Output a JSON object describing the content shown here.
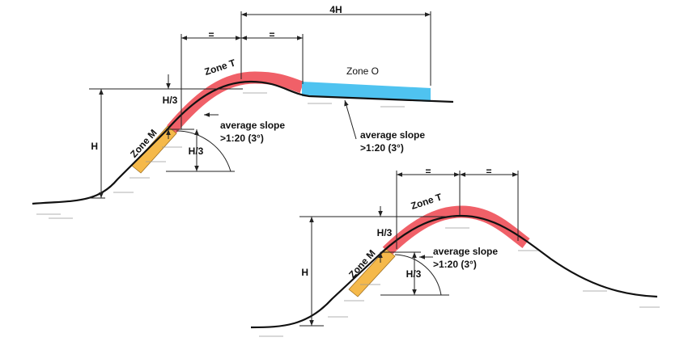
{
  "diagrams": [
    {
      "dimension_top": "4H",
      "equal_left": "=",
      "equal_right": "=",
      "zone_t": "Zone T",
      "zone_o": "Zone O",
      "h_third_upper": "H/3",
      "height": "H",
      "zone_m": "Zone M",
      "h_third_lower": "H/3",
      "slope_crest": [
        "average slope",
        ">1:20  (3°)"
      ],
      "slope_plateau": [
        "average slope",
        ">1:20 (3°)"
      ]
    },
    {
      "equal_left": "=",
      "equal_right": "=",
      "zone_t": "Zone T",
      "h_third_upper": "H/3",
      "height": "H",
      "zone_m": "Zone M",
      "h_third_lower": "H/3",
      "slope_crest": [
        "average slope",
        ">1:20  (3°)"
      ]
    }
  ]
}
